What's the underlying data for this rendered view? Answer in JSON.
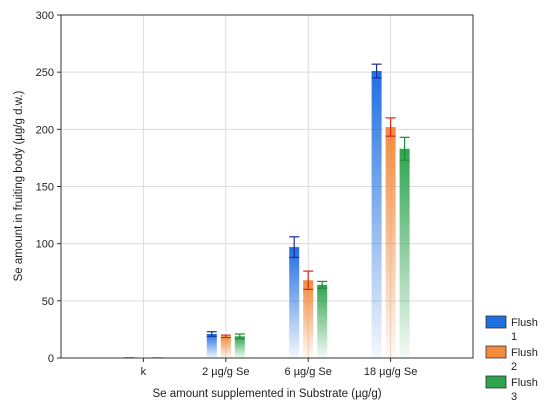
{
  "chart_data": {
    "type": "bar",
    "title": "",
    "xlabel": "Se amount supplemented in Substrate (µg/g)",
    "ylabel": "Se amount in fruiting body (µg/g d.w.)",
    "categories": [
      "k",
      "2 µg/g Se",
      "6 µg/g Se",
      "18 µg/g Se"
    ],
    "ylim": [
      0,
      300
    ],
    "yticks": [
      "0",
      "50",
      "100",
      "150",
      "200",
      "250",
      "300"
    ],
    "grid": true,
    "legend_position": "bottom-right",
    "series": [
      {
        "name": "Flush 1",
        "color": "#1f6fe0",
        "error_color": "#1a2fa0",
        "values": [
          0,
          21,
          97,
          251
        ],
        "errors": [
          0,
          2,
          9,
          6
        ]
      },
      {
        "name": "Flush 2",
        "color": "#f28b3c",
        "error_color": "#d8251c",
        "values": [
          0,
          19,
          68,
          202
        ],
        "errors": [
          0,
          1,
          8,
          8
        ]
      },
      {
        "name": "Flush 3",
        "color": "#2ea44f",
        "error_color": "#1f8a35",
        "values": [
          0,
          19,
          64,
          183
        ],
        "errors": [
          0,
          2,
          3,
          10
        ]
      }
    ]
  }
}
